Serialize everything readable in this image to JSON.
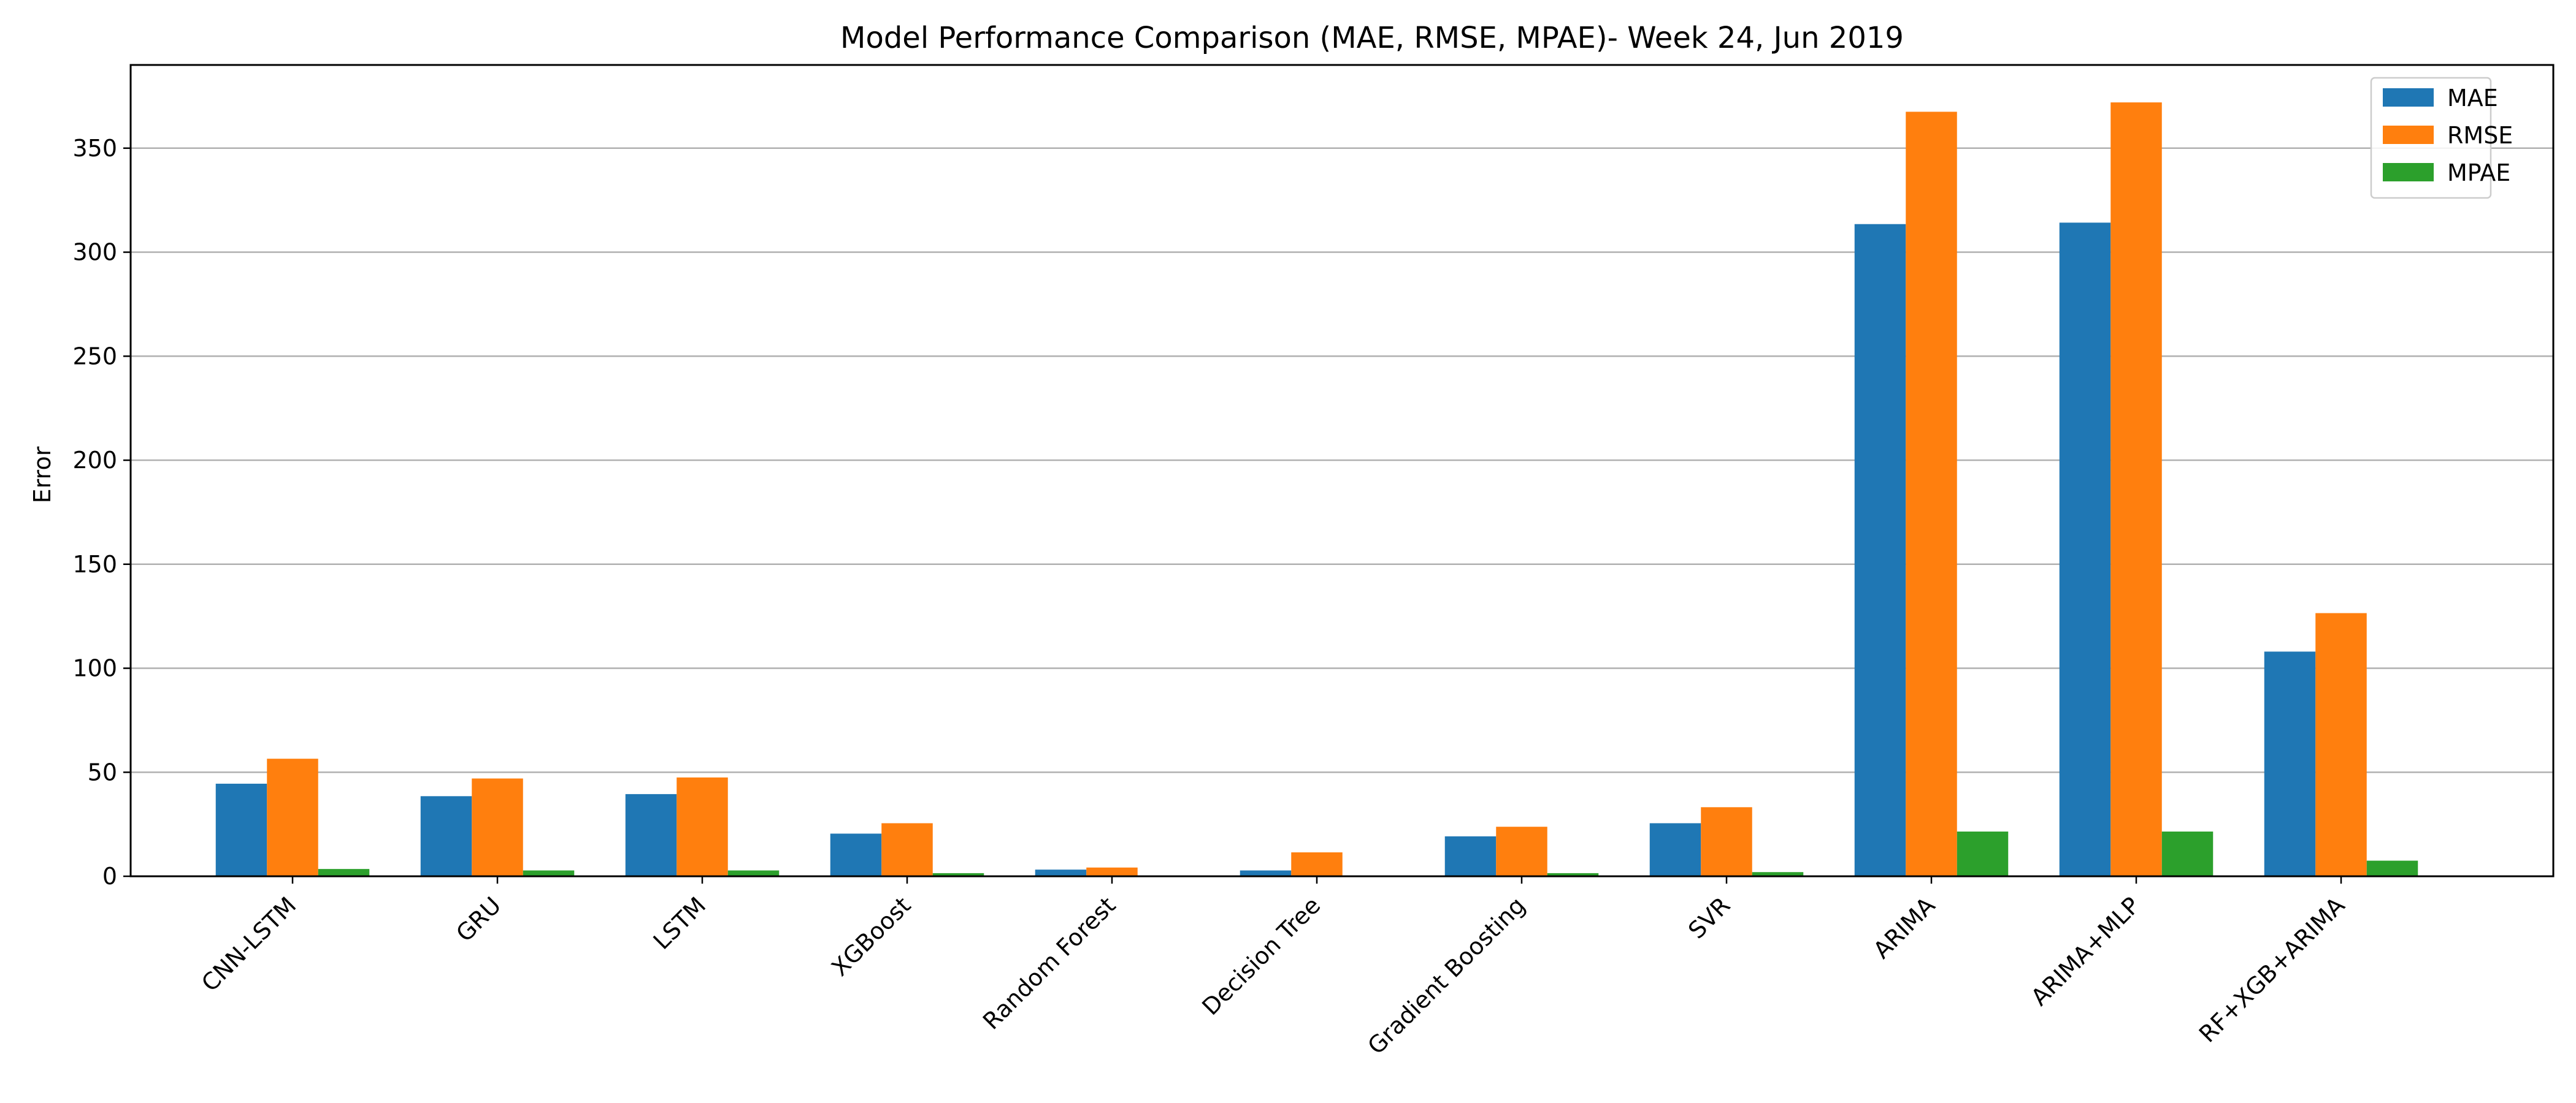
{
  "chart_data": {
    "type": "bar",
    "title": "Model Performance Comparison (MAE, RMSE, MPAE)- Week 24, Jun 2019",
    "xlabel": "",
    "ylabel": "Error",
    "ylim": [
      0,
      390
    ],
    "yticks": [
      0,
      50,
      100,
      150,
      200,
      250,
      300,
      350
    ],
    "grid": "y",
    "legend_position": "top-right",
    "categories": [
      "CNN-LSTM",
      "GRU",
      "LSTM",
      "XGBoost",
      "Random Forest",
      "Decision Tree",
      "Gradient Boosting",
      "SVR",
      "ARIMA",
      "ARIMA+MLP",
      "RF+XGB+ARIMA"
    ],
    "series": [
      {
        "name": "MAE",
        "color": "#1f77b4",
        "values": [
          44.5,
          38.5,
          39.5,
          20.5,
          3.2,
          2.8,
          19.2,
          25.5,
          313.5,
          314.2,
          108.0
        ]
      },
      {
        "name": "RMSE",
        "color": "#ff7f0e",
        "values": [
          56.5,
          47.0,
          47.5,
          25.5,
          4.2,
          11.5,
          23.8,
          33.2,
          367.5,
          372.0,
          126.5
        ]
      },
      {
        "name": "MPAE",
        "color": "#2ca02c",
        "values": [
          3.5,
          2.8,
          2.8,
          1.5,
          0.2,
          0.2,
          1.5,
          2.0,
          21.5,
          21.5,
          7.5
        ]
      }
    ]
  }
}
